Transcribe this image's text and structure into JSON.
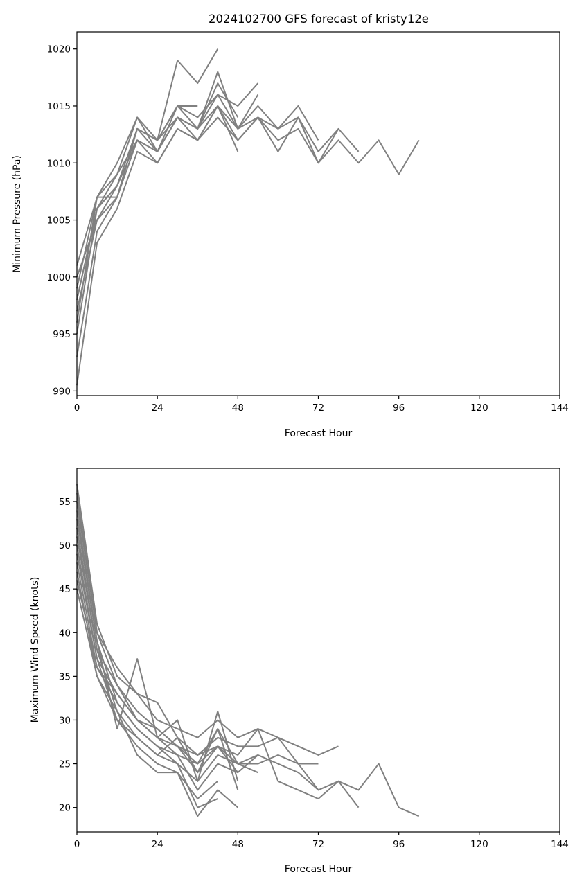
{
  "title": "2024102700 GFS forecast of kristy12e",
  "colors": {
    "line": "#808080",
    "axis": "#000000",
    "background": "#ffffff"
  },
  "chart_data": [
    {
      "type": "line",
      "title": "2024102700 GFS forecast of kristy12e",
      "xlabel": "Forecast Hour",
      "ylabel": "Minimum Pressure (hPa)",
      "xlim": [
        0,
        144
      ],
      "ylim": [
        989.6,
        1021.5
      ],
      "xticks": [
        0,
        24,
        48,
        72,
        96,
        120,
        144
      ],
      "yticks": [
        990,
        995,
        1000,
        1005,
        1010,
        1015,
        1020
      ],
      "grid": false,
      "series": [
        {
          "x": [
            0,
            6,
            12,
            18,
            24,
            30,
            36
          ],
          "values": [
            1001,
            1007,
            1010,
            1014,
            1012,
            1015,
            1015
          ]
        },
        {
          "x": [
            0,
            6,
            12,
            18,
            24,
            30,
            36,
            42
          ],
          "values": [
            999,
            1007,
            1007,
            1013,
            1012,
            1019,
            1017,
            1020
          ]
        },
        {
          "x": [
            0,
            6,
            12,
            18,
            24,
            30,
            36,
            42,
            48,
            54
          ],
          "values": [
            998,
            1006,
            1009,
            1014,
            1011,
            1015,
            1014,
            1016,
            1015,
            1017
          ]
        },
        {
          "x": [
            0,
            6,
            12,
            18,
            24,
            30,
            36,
            42,
            48,
            54,
            60,
            66,
            72
          ],
          "values": [
            997,
            1005,
            1008,
            1013,
            1012,
            1014,
            1013,
            1016,
            1013,
            1015,
            1013,
            1015,
            1012
          ]
        },
        {
          "x": [
            0,
            6,
            12,
            18,
            24,
            30,
            36,
            42,
            48,
            54,
            60,
            66,
            72,
            78,
            84,
            90,
            96,
            102
          ],
          "values": [
            996,
            1007,
            1009,
            1012,
            1011,
            1014,
            1013,
            1015,
            1013,
            1014,
            1013,
            1014,
            1010,
            1012,
            1010,
            1012,
            1009,
            1012
          ]
        },
        {
          "x": [
            0,
            6,
            12,
            18,
            24,
            30,
            36,
            42,
            48,
            54,
            60,
            66,
            72,
            78,
            84
          ],
          "values": [
            995,
            1006,
            1008,
            1012,
            1010,
            1013,
            1012,
            1014,
            1012,
            1014,
            1012,
            1013,
            1010,
            1013,
            1011
          ]
        },
        {
          "x": [
            0,
            6,
            12,
            18,
            24,
            30,
            36,
            42,
            48,
            54,
            60,
            66,
            72,
            78
          ],
          "values": [
            993,
            1004,
            1007,
            1013,
            1011,
            1014,
            1012,
            1015,
            1012,
            1014,
            1011,
            1014,
            1011,
            1013
          ]
        },
        {
          "x": [
            0,
            6,
            12,
            18,
            24,
            30,
            36,
            42,
            48
          ],
          "values": [
            990.5,
            1003,
            1006,
            1011,
            1010,
            1013,
            1012,
            1015,
            1011
          ]
        },
        {
          "x": [
            0,
            6,
            12,
            18,
            24,
            30,
            36,
            42,
            48
          ],
          "values": [
            1000,
            1005,
            1007,
            1012,
            1011,
            1014,
            1013,
            1017,
            1014
          ]
        },
        {
          "x": [
            0,
            6,
            12,
            18,
            24,
            30,
            36,
            42,
            48,
            54
          ],
          "values": [
            998,
            1006,
            1008,
            1013,
            1012,
            1015,
            1013,
            1018,
            1013,
            1016
          ]
        }
      ]
    },
    {
      "type": "line",
      "xlabel": "Forecast Hour",
      "ylabel": "Maximum Wind Speed (knots)",
      "xlim": [
        0,
        144
      ],
      "ylim": [
        17.2,
        58.8
      ],
      "xticks": [
        0,
        24,
        48,
        72,
        96,
        120,
        144
      ],
      "yticks": [
        20,
        25,
        30,
        35,
        40,
        45,
        50,
        55
      ],
      "grid": false,
      "series": [
        {
          "x": [
            0,
            6,
            12,
            18,
            24,
            30,
            36,
            42,
            48,
            54,
            60,
            66,
            72,
            78,
            84,
            90,
            96,
            102
          ],
          "values": [
            57,
            41,
            35,
            33,
            32,
            28,
            26,
            28,
            27,
            27,
            28,
            25,
            22,
            23,
            22,
            25,
            20,
            19
          ]
        },
        {
          "x": [
            0,
            6,
            12,
            18,
            24,
            30,
            36,
            42,
            48,
            54,
            60,
            66,
            72,
            78
          ],
          "values": [
            55,
            40,
            36,
            33,
            30,
            29,
            28,
            30,
            28,
            29,
            28,
            27,
            26,
            27
          ]
        },
        {
          "x": [
            0,
            6,
            12,
            18,
            24,
            30,
            36,
            42,
            48,
            54,
            60,
            66,
            72,
            78,
            84
          ],
          "values": [
            52,
            38,
            34,
            30,
            28,
            27,
            25,
            27,
            26,
            29,
            23,
            22,
            21,
            23,
            20
          ]
        },
        {
          "x": [
            0,
            6,
            12,
            18,
            24,
            30,
            36,
            42,
            48,
            54,
            60,
            66,
            72
          ],
          "values": [
            50,
            37,
            33,
            30,
            29,
            27,
            24,
            29,
            25,
            26,
            25,
            24,
            22
          ]
        },
        {
          "x": [
            0,
            6,
            12,
            18,
            24,
            30,
            36,
            42,
            48,
            54,
            60,
            66,
            72
          ],
          "values": [
            48,
            36,
            32,
            29,
            27,
            25,
            23,
            26,
            25,
            25,
            26,
            25,
            25
          ]
        },
        {
          "x": [
            0,
            6,
            12,
            18,
            24,
            30,
            36,
            42,
            48,
            54
          ],
          "values": [
            47,
            35,
            31,
            28,
            26,
            28,
            24,
            27,
            24,
            26
          ]
        },
        {
          "x": [
            0,
            6,
            12,
            18,
            24,
            30,
            36,
            42,
            48
          ],
          "values": [
            46,
            36,
            33,
            30,
            28,
            26,
            22,
            25,
            24
          ]
        },
        {
          "x": [
            0,
            6,
            12,
            18,
            24,
            30,
            36,
            42,
            48
          ],
          "values": [
            45,
            35,
            30,
            27,
            25,
            24,
            19,
            22,
            20
          ]
        },
        {
          "x": [
            0,
            6,
            12,
            18,
            24,
            30,
            36,
            42,
            48
          ],
          "values": [
            53,
            39,
            29,
            37,
            28,
            30,
            23,
            31,
            23
          ]
        },
        {
          "x": [
            0,
            6,
            12,
            18,
            24,
            30,
            36,
            42
          ],
          "values": [
            51,
            38,
            31,
            26,
            24,
            24,
            21,
            23
          ]
        },
        {
          "x": [
            0,
            6,
            12,
            18,
            24,
            30,
            36,
            42
          ],
          "values": [
            49,
            37,
            30,
            28,
            26,
            25,
            20,
            21
          ]
        },
        {
          "x": [
            0,
            6,
            12,
            18,
            24,
            30,
            36,
            42,
            48
          ],
          "values": [
            54,
            39,
            32,
            29,
            27,
            26,
            25,
            29,
            22
          ]
        },
        {
          "x": [
            0,
            6,
            12,
            18,
            24,
            30,
            36,
            42,
            48,
            54
          ],
          "values": [
            56,
            40,
            34,
            31,
            29,
            27,
            26,
            27,
            25,
            24
          ]
        }
      ]
    }
  ]
}
